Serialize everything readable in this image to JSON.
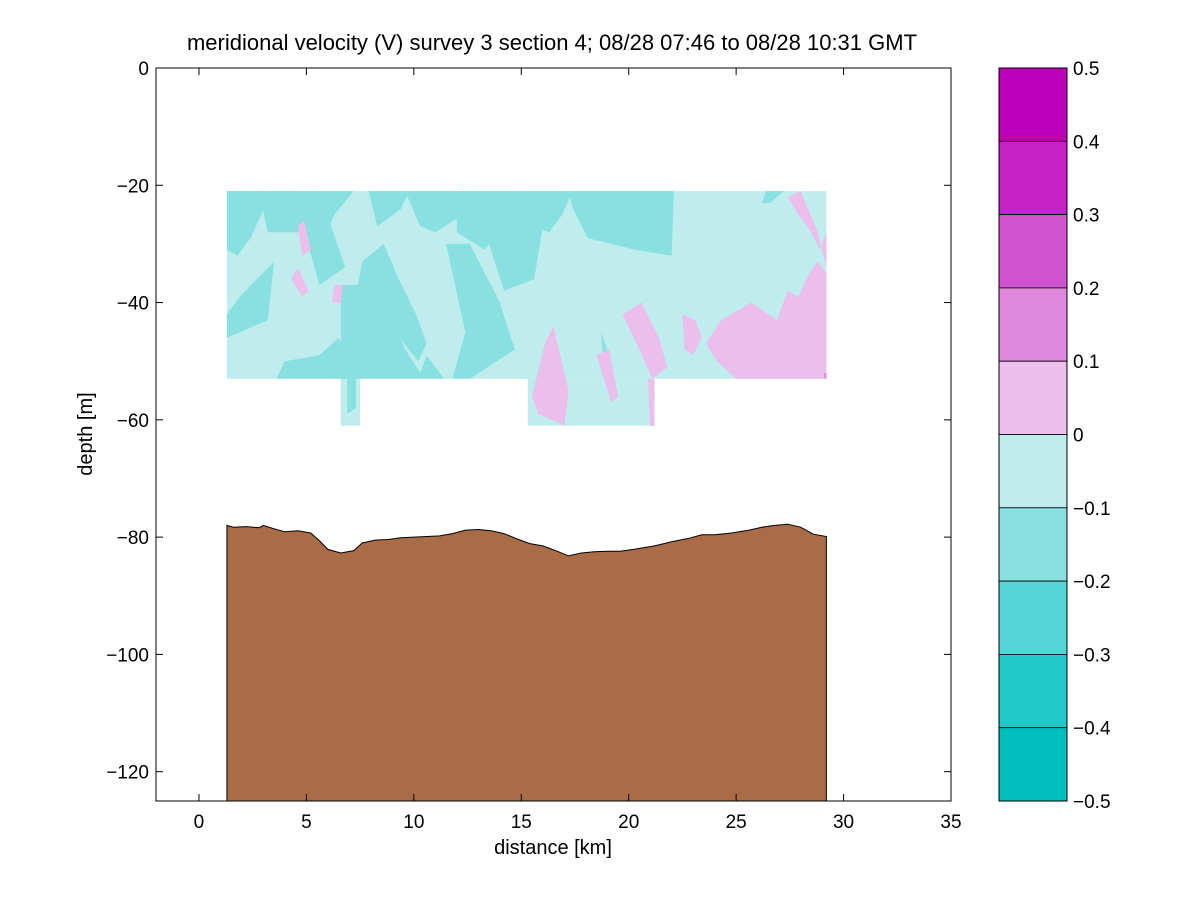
{
  "chart_data": {
    "type": "heatmap",
    "title": "meridional velocity (V) survey 3 section 4; 08/28 07:46 to 08/28 10:31 GMT",
    "xlabel": "distance [km]",
    "ylabel": "depth [m]",
    "xlim": [
      -2,
      35
    ],
    "ylim": [
      -125,
      0
    ],
    "xticks": [
      0,
      5,
      10,
      15,
      20,
      25,
      30,
      35
    ],
    "yticks": [
      0,
      -20,
      -40,
      -60,
      -80,
      -100,
      -120
    ],
    "colorbar": {
      "ticks": [
        0.5,
        0.4,
        0.3,
        0.2,
        0.1,
        0,
        -0.1,
        -0.2,
        -0.3,
        -0.4,
        -0.5
      ],
      "tick_labels": [
        "0.5",
        "0.4",
        "0.3",
        "0.2",
        "0.1",
        "0",
        "−0.1",
        "−0.2",
        "−0.3",
        "−0.4",
        "−0.5"
      ],
      "levels": [
        {
          "min": 0.4,
          "max": 0.5,
          "color": "#bb00bb"
        },
        {
          "min": 0.3,
          "max": 0.4,
          "color": "#c722c7"
        },
        {
          "min": 0.2,
          "max": 0.3,
          "color": "#d253d2"
        },
        {
          "min": 0.1,
          "max": 0.2,
          "color": "#de88de"
        },
        {
          "min": 0.0,
          "max": 0.1,
          "color": "#ebbeeb"
        },
        {
          "min": -0.1,
          "max": 0.0,
          "color": "#bfecec"
        },
        {
          "min": -0.2,
          "max": -0.1,
          "color": "#88e0e0"
        },
        {
          "min": -0.3,
          "max": -0.2,
          "color": "#55d5d5"
        },
        {
          "min": -0.4,
          "max": -0.3,
          "color": "#22c9c9"
        },
        {
          "min": -0.5,
          "max": -0.4,
          "color": "#00bebe"
        }
      ]
    },
    "velocity_base": {
      "value": -0.05,
      "color": "#bfecec",
      "x": [
        1.3,
        29.2
      ],
      "depth": [
        -21,
        -53
      ]
    },
    "velocity_deep_extensions": [
      {
        "x": [
          6.6,
          7.5
        ],
        "depth": [
          -53,
          -61
        ]
      },
      {
        "x": [
          15.3,
          21.2
        ],
        "depth": [
          -53,
          -61
        ]
      }
    ],
    "velocity_regions": [
      {
        "value": -0.15,
        "points": [
          [
            1.3,
            -21
          ],
          [
            3.4,
            -21
          ],
          [
            2.4,
            -29
          ],
          [
            1.8,
            -32
          ],
          [
            1.3,
            -31
          ]
        ]
      },
      {
        "value": -0.15,
        "points": [
          [
            2.8,
            -21
          ],
          [
            5.8,
            -21
          ],
          [
            4.8,
            -28
          ],
          [
            3.2,
            -28
          ]
        ]
      },
      {
        "value": -0.15,
        "points": [
          [
            4.4,
            -21
          ],
          [
            5.6,
            -21
          ],
          [
            6.8,
            -34
          ],
          [
            5.6,
            -37
          ]
        ]
      },
      {
        "value": -0.15,
        "points": [
          [
            1.3,
            -42
          ],
          [
            1.9,
            -39
          ],
          [
            3.5,
            -33
          ],
          [
            3.2,
            -43
          ],
          [
            1.3,
            -46
          ]
        ]
      },
      {
        "value": -0.15,
        "points": [
          [
            5.5,
            -21
          ],
          [
            7.2,
            -21
          ],
          [
            6.3,
            -25
          ],
          [
            5.7,
            -30
          ]
        ]
      },
      {
        "value": -0.15,
        "points": [
          [
            7.9,
            -21
          ],
          [
            9.8,
            -21
          ],
          [
            9.4,
            -24
          ],
          [
            8.3,
            -27
          ]
        ]
      },
      {
        "value": -0.15,
        "points": [
          [
            3.6,
            -53
          ],
          [
            4.0,
            -50
          ],
          [
            5.6,
            -49
          ],
          [
            6.5,
            -46
          ],
          [
            7.3,
            -53
          ]
        ]
      },
      {
        "value": -0.15,
        "points": [
          [
            6.6,
            -37
          ],
          [
            7.4,
            -37
          ],
          [
            8.6,
            -40
          ],
          [
            9.6,
            -48
          ],
          [
            10.3,
            -52
          ],
          [
            10.6,
            -49
          ],
          [
            11.4,
            -53
          ],
          [
            6.6,
            -53
          ]
        ]
      },
      {
        "value": -0.15,
        "points": [
          [
            7.4,
            -37
          ],
          [
            7.6,
            -33
          ],
          [
            8.6,
            -30
          ],
          [
            9.3,
            -36
          ],
          [
            10.1,
            -42
          ],
          [
            10.6,
            -47
          ],
          [
            10.2,
            -50
          ]
        ]
      },
      {
        "value": -0.15,
        "points": [
          [
            9.6,
            -21
          ],
          [
            13.0,
            -21
          ],
          [
            12.7,
            -24
          ],
          [
            11.0,
            -28
          ],
          [
            10.3,
            -27
          ]
        ]
      },
      {
        "value": -0.15,
        "points": [
          [
            12.0,
            -21
          ],
          [
            14.8,
            -21
          ],
          [
            14.5,
            -25
          ],
          [
            13.3,
            -31
          ],
          [
            12.0,
            -28
          ]
        ]
      },
      {
        "value": -0.15,
        "points": [
          [
            11.5,
            -30
          ],
          [
            12.6,
            -30
          ],
          [
            14.0,
            -40
          ],
          [
            14.7,
            -48
          ],
          [
            12.6,
            -53
          ],
          [
            11.8,
            -53
          ],
          [
            12.4,
            -45
          ]
        ]
      },
      {
        "value": -0.15,
        "points": [
          [
            13.0,
            -21
          ],
          [
            16.8,
            -21
          ],
          [
            16.0,
            -27
          ],
          [
            15.6,
            -36
          ],
          [
            14.2,
            -38
          ],
          [
            13.5,
            -30
          ]
        ]
      },
      {
        "value": -0.15,
        "points": [
          [
            15.2,
            -21
          ],
          [
            17.4,
            -21
          ],
          [
            16.9,
            -25
          ],
          [
            16.3,
            -28
          ],
          [
            15.6,
            -27
          ]
        ]
      },
      {
        "value": -0.15,
        "points": [
          [
            17.2,
            -21
          ],
          [
            22.1,
            -21
          ],
          [
            22.0,
            -32
          ],
          [
            20.3,
            -31
          ],
          [
            18.1,
            -29
          ],
          [
            17.4,
            -24
          ]
        ]
      },
      {
        "value": -0.15,
        "points": [
          [
            26.4,
            -21
          ],
          [
            27.2,
            -21
          ],
          [
            26.6,
            -23
          ],
          [
            26.2,
            -23
          ]
        ]
      },
      {
        "value": -0.15,
        "points": [
          [
            6.9,
            -53
          ],
          [
            7.3,
            -53
          ],
          [
            7.3,
            -58
          ],
          [
            6.9,
            -59
          ]
        ]
      },
      {
        "value": -0.15,
        "points": [
          [
            18.7,
            -45
          ],
          [
            19.0,
            -48
          ],
          [
            19.3,
            -53
          ],
          [
            18.9,
            -53
          ]
        ]
      },
      {
        "value": 0.05,
        "points": [
          [
            4.6,
            -27
          ],
          [
            4.9,
            -26
          ],
          [
            5.2,
            -31
          ],
          [
            4.8,
            -32
          ]
        ]
      },
      {
        "value": 0.05,
        "points": [
          [
            4.3,
            -36
          ],
          [
            4.6,
            -34
          ],
          [
            5.1,
            -38
          ],
          [
            4.8,
            -39
          ]
        ]
      },
      {
        "value": 0.05,
        "points": [
          [
            6.3,
            -37
          ],
          [
            6.7,
            -37
          ],
          [
            6.6,
            -40
          ],
          [
            6.2,
            -40
          ]
        ]
      },
      {
        "value": 0.05,
        "points": [
          [
            16.1,
            -47
          ],
          [
            16.5,
            -44
          ],
          [
            17.2,
            -55
          ],
          [
            17.0,
            -61
          ],
          [
            15.8,
            -59
          ],
          [
            15.5,
            -56
          ]
        ]
      },
      {
        "value": 0.05,
        "points": [
          [
            18.5,
            -49
          ],
          [
            19.1,
            -48
          ],
          [
            19.5,
            -56
          ],
          [
            19.2,
            -57
          ]
        ]
      },
      {
        "value": 0.05,
        "points": [
          [
            20.9,
            -53
          ],
          [
            21.2,
            -53
          ],
          [
            21.2,
            -61
          ],
          [
            21.0,
            -61
          ]
        ]
      },
      {
        "value": 0.05,
        "points": [
          [
            19.7,
            -42
          ],
          [
            20.6,
            -40
          ],
          [
            21.4,
            -46
          ],
          [
            21.8,
            -51
          ],
          [
            21.1,
            -53
          ],
          [
            20.5,
            -48
          ]
        ]
      },
      {
        "value": 0.05,
        "points": [
          [
            22.5,
            -42
          ],
          [
            23.1,
            -43
          ],
          [
            23.4,
            -46
          ],
          [
            23.0,
            -49
          ],
          [
            22.6,
            -48
          ]
        ]
      },
      {
        "value": 0.05,
        "points": [
          [
            23.6,
            -47
          ],
          [
            24.3,
            -43
          ],
          [
            25.7,
            -40
          ],
          [
            26.9,
            -43
          ],
          [
            27.4,
            -38
          ],
          [
            27.9,
            -39
          ],
          [
            28.4,
            -35
          ],
          [
            28.8,
            -33
          ],
          [
            29.2,
            -35
          ],
          [
            29.2,
            -53
          ],
          [
            25.0,
            -53
          ],
          [
            24.1,
            -50
          ]
        ]
      },
      {
        "value": 0.05,
        "points": [
          [
            27.4,
            -22
          ],
          [
            28.0,
            -21
          ],
          [
            28.8,
            -28
          ],
          [
            29.2,
            -34
          ],
          [
            29.2,
            -28
          ],
          [
            28.9,
            -31
          ],
          [
            28.5,
            -28
          ],
          [
            27.9,
            -25
          ]
        ]
      },
      {
        "value": 0.15,
        "points": [
          [
            29.1,
            -52
          ],
          [
            29.2,
            -52
          ],
          [
            29.2,
            -53
          ],
          [
            29.1,
            -53
          ]
        ]
      }
    ],
    "seafloor": {
      "color": "#a96c47",
      "profile": [
        [
          1.3,
          -78
        ],
        [
          1.6,
          -78.3
        ],
        [
          2.2,
          -78.2
        ],
        [
          2.8,
          -78.4
        ],
        [
          3.0,
          -78.0
        ],
        [
          3.5,
          -78.6
        ],
        [
          4.0,
          -79.1
        ],
        [
          4.6,
          -78.9
        ],
        [
          5.2,
          -79.3
        ],
        [
          5.6,
          -80.6
        ],
        [
          6.0,
          -82.1
        ],
        [
          6.6,
          -82.7
        ],
        [
          7.2,
          -82.3
        ],
        [
          7.6,
          -81.0
        ],
        [
          8.2,
          -80.5
        ],
        [
          8.8,
          -80.4
        ],
        [
          9.4,
          -80.1
        ],
        [
          10.0,
          -80.0
        ],
        [
          10.6,
          -79.9
        ],
        [
          11.2,
          -79.8
        ],
        [
          11.8,
          -79.4
        ],
        [
          12.4,
          -78.8
        ],
        [
          13.0,
          -78.7
        ],
        [
          13.6,
          -78.9
        ],
        [
          14.2,
          -79.4
        ],
        [
          14.8,
          -80.3
        ],
        [
          15.4,
          -81.1
        ],
        [
          16.0,
          -81.5
        ],
        [
          16.6,
          -82.3
        ],
        [
          17.2,
          -83.2
        ],
        [
          17.8,
          -82.7
        ],
        [
          18.4,
          -82.5
        ],
        [
          19.0,
          -82.4
        ],
        [
          19.6,
          -82.4
        ],
        [
          20.4,
          -82.0
        ],
        [
          21.2,
          -81.5
        ],
        [
          22.0,
          -80.8
        ],
        [
          22.8,
          -80.2
        ],
        [
          23.4,
          -79.6
        ],
        [
          24.0,
          -79.6
        ],
        [
          24.8,
          -79.3
        ],
        [
          25.6,
          -78.8
        ],
        [
          26.2,
          -78.3
        ],
        [
          26.8,
          -78.0
        ],
        [
          27.4,
          -77.8
        ],
        [
          28.0,
          -78.3
        ],
        [
          28.6,
          -79.5
        ],
        [
          29.2,
          -79.9
        ]
      ]
    }
  }
}
